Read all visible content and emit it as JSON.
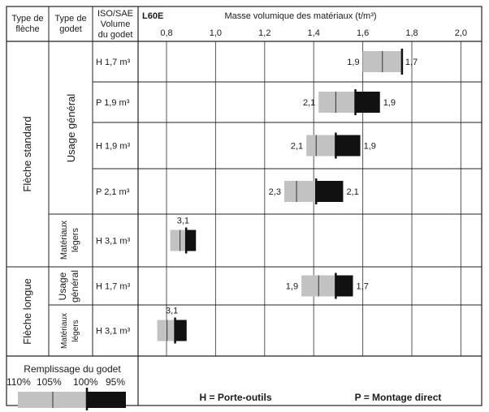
{
  "colors": {
    "light": "#c2c2c2",
    "dark": "#111111",
    "line": "#222222",
    "grid": "#555555",
    "text": "#1a1a1a"
  },
  "header": {
    "col1": [
      "Type de",
      "flèche"
    ],
    "col2": [
      "Type de",
      "godet"
    ],
    "col3": [
      "ISO/SAE",
      "Volume",
      "du godet"
    ],
    "model": "L60E",
    "title": "Masse volumique des matériaux (t/m³)"
  },
  "groups": [
    {
      "label": "Flèche standard",
      "subgroups": [
        {
          "label": "Usage général"
        },
        {
          "label": "Matériaux légers"
        }
      ]
    },
    {
      "label": "Flèche longue",
      "subgroups": [
        {
          "label": "Usage général"
        },
        {
          "label": "Matériaux légers"
        }
      ]
    }
  ],
  "legend": {
    "title": "Remplissage du godet",
    "percents": [
      "110%",
      "105%",
      "100%",
      "95%"
    ],
    "note_h": "H = Porte-outils",
    "note_p": "P = Montage direct"
  },
  "chart_data": {
    "type": "bar",
    "title": "Masse volumique des matériaux (t/m³)",
    "xlabel": "Masse volumique des matériaux (t/m³)",
    "xticks": [
      "0,8",
      "1,0",
      "1,2",
      "1,4",
      "1,6",
      "1,8",
      "2,0"
    ],
    "xlim": [
      0.75,
      2.1
    ],
    "series": [
      "110%",
      "105%",
      "100%",
      "95%"
    ],
    "rows": [
      {
        "bucket": "H 1,7 m³",
        "v110": 1.6,
        "v105": 1.68,
        "v100": 1.76,
        "label_left": "1,9",
        "label_right": "1,7"
      },
      {
        "bucket": "P 1,9 m³",
        "v110": 1.42,
        "v105": 1.49,
        "v100": 1.57,
        "v95": 1.67,
        "label_left": "2,1",
        "label_right": "1,9"
      },
      {
        "bucket": "H 1,9 m³",
        "v110": 1.37,
        "v105": 1.41,
        "v100": 1.49,
        "v95": 1.59,
        "label_left": "2,1",
        "label_right": "1,9"
      },
      {
        "bucket": "P 2,1 m³",
        "v110": 1.28,
        "v105": 1.33,
        "v100": 1.41,
        "v95": 1.52,
        "label_left": "2,3",
        "label_right": "2,1"
      },
      {
        "bucket": "H 3,1 m³",
        "v110": 0.815,
        "v105": 0.855,
        "v100": 0.88,
        "v95": 0.92,
        "label_top": "3,1"
      },
      {
        "bucket": "H 1,7 m³",
        "v110": 1.35,
        "v105": 1.42,
        "v100": 1.49,
        "v95": 1.56,
        "label_left": "1,9",
        "label_right": "1,7"
      },
      {
        "bucket": "H 3,1 m³",
        "v110": 0.762,
        "v105": 0.802,
        "v100": 0.835,
        "v95": 0.882,
        "label_top": "3,1"
      }
    ]
  }
}
